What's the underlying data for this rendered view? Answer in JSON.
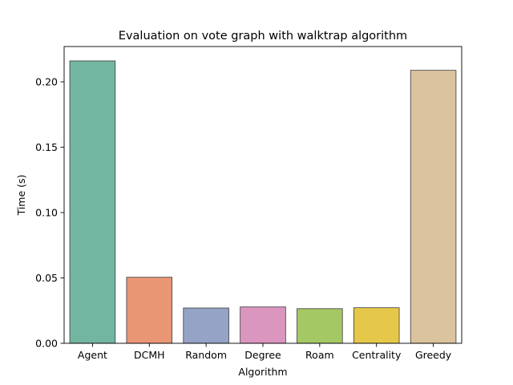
{
  "chart_data": {
    "type": "bar",
    "title": "Evaluation on vote graph with walktrap algorithm",
    "xlabel": "Algorithm",
    "ylabel": "Time (s)",
    "categories": [
      "Agent",
      "DCMH",
      "Random",
      "Degree",
      "Roam",
      "Centrality",
      "Greedy"
    ],
    "values": [
      0.216,
      0.0505,
      0.027,
      0.0278,
      0.0265,
      0.0272,
      0.2088
    ],
    "colors": [
      "#72b6a1",
      "#e99675",
      "#95a3c6",
      "#db96c0",
      "#a3c864",
      "#e5c84a",
      "#dbc39d"
    ],
    "ylim": [
      0,
      0.227
    ],
    "yticks": [
      0.0,
      0.05,
      0.1,
      0.15,
      0.2
    ],
    "ytick_labels": [
      "0.00",
      "0.05",
      "0.10",
      "0.15",
      "0.20"
    ],
    "grid": false,
    "legend": "none"
  }
}
